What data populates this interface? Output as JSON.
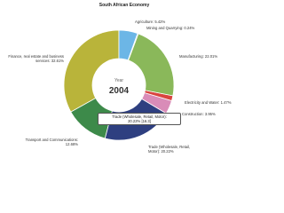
{
  "chart_data": {
    "type": "donut",
    "title": "South African Economy",
    "center_label": "Year",
    "center_value": "2004",
    "categories": [
      "Agriculture",
      "Mining and Quarrying",
      "Manufacturing",
      "Electricity and Water",
      "Construction",
      "Trade (Wholesale, Retail, Motor)",
      "Transport and Communications",
      "Finance, real estate and business services"
    ],
    "values": [
      5.42,
      0.24,
      22.01,
      1.47,
      3.95,
      20.22,
      12.68,
      32.61
    ],
    "value_labels": [
      "5.42%",
      "0.24%",
      "22.01%",
      "1.47%",
      "3.95%",
      "20.22%",
      "12.68%",
      "32.61%"
    ],
    "colors": [
      "#6cb6e6",
      "#4d7fc4",
      "#8ab85a",
      "#d9443f",
      "#d98cb8",
      "#2e3f80",
      "#3d8a4a",
      "#b9b43a"
    ],
    "tooltip": {
      "line1": "Trade (Wholesale, Retail, Motor):",
      "line2": "20.22% [16.3]"
    }
  }
}
